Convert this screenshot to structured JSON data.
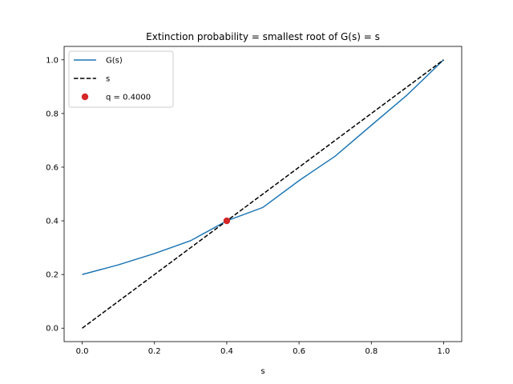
{
  "chart_data": {
    "type": "line",
    "title": "Extinction probability = smallest root of G(s) = s",
    "xlabel": "s",
    "ylabel": "",
    "xlim": [
      -0.05,
      1.05
    ],
    "ylim": [
      -0.05,
      1.05
    ],
    "xticks": [
      0.0,
      0.2,
      0.4,
      0.6,
      0.8,
      1.0
    ],
    "yticks": [
      0.0,
      0.2,
      0.4,
      0.6,
      0.8,
      1.0
    ],
    "xtick_labels": [
      "0.0",
      "0.2",
      "0.4",
      "0.6",
      "0.8",
      "1.0"
    ],
    "ytick_labels": [
      "0.0",
      "0.2",
      "0.4",
      "0.6",
      "0.8",
      "1.0"
    ],
    "grid": false,
    "legend_position": "top-left",
    "series": [
      {
        "name": "G(s)",
        "style": "solid",
        "color": "#1f77b4",
        "x": [
          0.0,
          0.1,
          0.2,
          0.3,
          0.4,
          0.5,
          0.6,
          0.7,
          0.8,
          0.9,
          1.0
        ],
        "y": [
          0.2,
          0.236,
          0.278,
          0.326,
          0.4,
          0.45,
          0.55,
          0.641,
          0.756,
          0.87,
          1.0
        ]
      },
      {
        "name": "s",
        "style": "dashed",
        "color": "#000000",
        "x": [
          0.0,
          1.0
        ],
        "y": [
          0.0,
          1.0
        ]
      },
      {
        "name": "q = 0.4000",
        "style": "marker",
        "color": "#d62728",
        "x": [
          0.4
        ],
        "y": [
          0.4
        ]
      }
    ]
  }
}
